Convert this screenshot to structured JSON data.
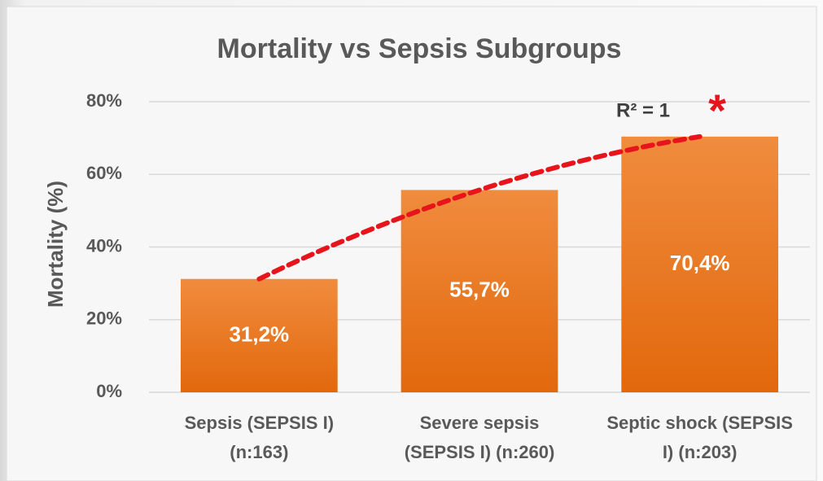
{
  "chart_data": {
    "type": "bar",
    "title": "Mortality vs Sepsis Subgroups",
    "y_label": "Mortality (%)",
    "categories": [
      "Sepsis (SEPSIS I) (n:163)",
      "Severe sepsis (SEPSIS I) (n:260)",
      "Septic shock (SEPSIS I) (n:203)"
    ],
    "values": [
      31.2,
      55.7,
      70.4
    ],
    "value_labels": [
      "31,2%",
      "55,7%",
      "70,4%"
    ],
    "color": "#ec7a22",
    "ylim": [
      0,
      80
    ],
    "yticks": [
      {
        "value": 0,
        "label": "0%"
      },
      {
        "value": 20,
        "label": "20%"
      },
      {
        "value": 40,
        "label": "40%"
      },
      {
        "value": 60,
        "label": "60%"
      },
      {
        "value": 80,
        "label": "80%"
      }
    ],
    "grid": true,
    "trendline_color": "#e8141b",
    "annotations": [
      "R² = 1",
      "*"
    ]
  }
}
